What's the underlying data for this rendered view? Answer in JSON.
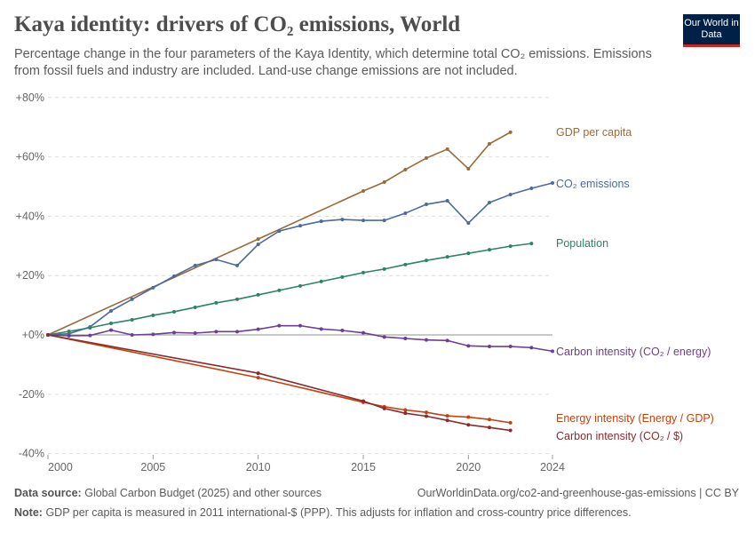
{
  "header": {
    "title": "Kaya identity: drivers of CO₂ emissions, World",
    "subtitle": "Percentage change in the four parameters of the Kaya Identity, which determine total CO₂ emissions. Emissions from fossil fuels and industry are included. Land-use change emissions are not included.",
    "logo_text": "Our World in Data"
  },
  "footer": {
    "source_label": "Data source:",
    "source_text": "Global Carbon Budget (2025) and other sources",
    "url_text": "OurWorldinData.org/co2-and-greenhouse-gas-emissions | CC BY",
    "note_label": "Note:",
    "note_text": "GDP per capita is measured in 2011 international-$ (PPP). This adjusts for inflation and cross-country price differences."
  },
  "chart_data": {
    "type": "line",
    "title": "Kaya identity: drivers of CO₂ emissions, World",
    "xlim": [
      2000,
      2024
    ],
    "ylim": [
      -40,
      80
    ],
    "x_ticks": [
      2000,
      2005,
      2010,
      2015,
      2020,
      2024
    ],
    "y_ticks": [
      -40,
      -20,
      0,
      20,
      40,
      60,
      80
    ],
    "y_tick_labels": [
      "-40%",
      "-20%",
      "+0%",
      "+20%",
      "+40%",
      "+60%",
      "+80%"
    ],
    "grid": "horizontal dashed",
    "legend": "inline-right",
    "series": [
      {
        "name": "GDP per capita",
        "color": "#9a6b3a",
        "x": [
          2000,
          2010,
          2015,
          2016,
          2017,
          2018,
          2019,
          2020,
          2021,
          2022
        ],
        "y": [
          0,
          32.3,
          48.5,
          51.5,
          55.7,
          59.6,
          62.6,
          56.0,
          64.4,
          68.3
        ]
      },
      {
        "name": "CO₂ emissions",
        "color": "#4c6a9c",
        "x": [
          2000,
          2001,
          2002,
          2003,
          2004,
          2005,
          2006,
          2007,
          2008,
          2009,
          2010,
          2011,
          2012,
          2013,
          2014,
          2015,
          2016,
          2017,
          2018,
          2019,
          2020,
          2021,
          2022,
          2023,
          2024
        ],
        "y": [
          0,
          0.4,
          2.7,
          8.1,
          12.0,
          15.9,
          19.8,
          23.4,
          25.4,
          23.4,
          30.5,
          35.0,
          36.8,
          38.3,
          38.9,
          38.6,
          38.6,
          41.0,
          44.0,
          45.2,
          37.7,
          44.6,
          47.3,
          49.4,
          51.2
        ]
      },
      {
        "name": "Population",
        "color": "#2c8465",
        "x": [
          2000,
          2001,
          2002,
          2003,
          2004,
          2005,
          2006,
          2007,
          2008,
          2009,
          2010,
          2011,
          2012,
          2013,
          2014,
          2015,
          2016,
          2017,
          2018,
          2019,
          2020,
          2021,
          2022,
          2023
        ],
        "y": [
          0,
          1.2,
          2.4,
          3.9,
          5.1,
          6.6,
          7.8,
          9.3,
          10.8,
          12.0,
          13.5,
          15.0,
          16.5,
          18.0,
          19.5,
          21.0,
          22.2,
          23.7,
          25.1,
          26.3,
          27.5,
          28.7,
          29.9,
          30.8
        ]
      },
      {
        "name": "Carbon intensity (CO₂ / energy)",
        "color": "#6d3e91",
        "x": [
          2000,
          2001,
          2002,
          2003,
          2004,
          2005,
          2006,
          2007,
          2008,
          2009,
          2010,
          2011,
          2012,
          2013,
          2014,
          2015,
          2016,
          2017,
          2018,
          2019,
          2020,
          2021,
          2022,
          2023,
          2024
        ],
        "y": [
          0,
          -0.3,
          -0.2,
          1.6,
          0,
          0.2,
          0.8,
          0.6,
          1.1,
          1.1,
          1.9,
          3.1,
          3.1,
          2.0,
          1.5,
          0.7,
          -0.7,
          -1.2,
          -1.7,
          -1.9,
          -3.7,
          -3.9,
          -3.9,
          -4.3,
          -5.5
        ]
      },
      {
        "name": "Energy intensity (Energy / GDP)",
        "color": "#c4420f",
        "x": [
          2000,
          2010,
          2015,
          2016,
          2017,
          2018,
          2019,
          2020,
          2021,
          2022
        ],
        "y": [
          0,
          -14.4,
          -22.7,
          -24.2,
          -25.3,
          -26.1,
          -27.3,
          -27.7,
          -28.5,
          -29.6
        ]
      },
      {
        "name": "Carbon intensity (CO₂ / $)",
        "color": "#8c2a2e",
        "x": [
          2000,
          2010,
          2015,
          2016,
          2017,
          2018,
          2019,
          2020,
          2021,
          2022
        ],
        "y": [
          0,
          -12.9,
          -22.3,
          -24.8,
          -26.4,
          -27.4,
          -28.8,
          -30.3,
          -31.2,
          -32.2
        ]
      }
    ]
  }
}
